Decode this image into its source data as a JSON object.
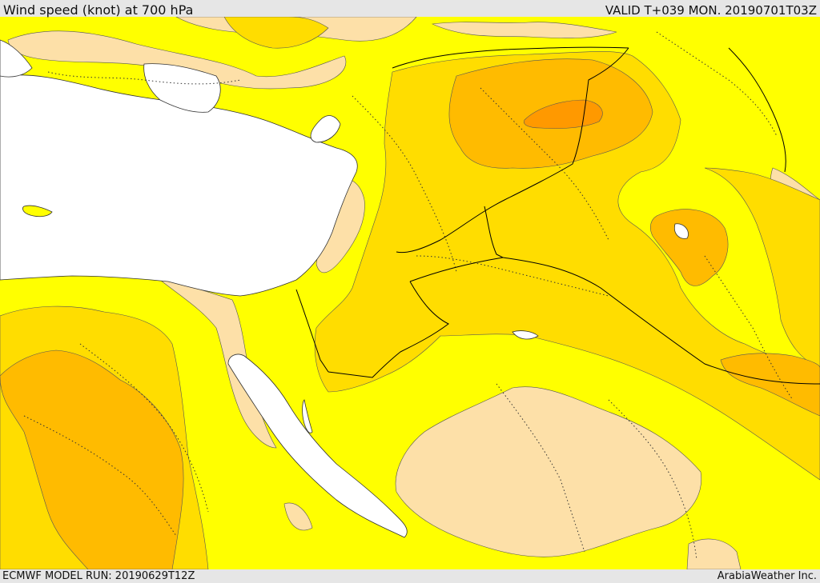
{
  "header": {
    "title": "Wind speed (knot) at 700 hPa",
    "valid": "VALID T+039 MON. 20190701T03Z"
  },
  "footer": {
    "model_run": "ECMWF MODEL RUN: 20190629T12Z",
    "credit": "ArabiaWeather Inc."
  },
  "colors": {
    "sea": "#ffffff",
    "level_low": "#fde0a8",
    "level_base": "#ffff00",
    "level_mid": "#ffdd00",
    "level_high": "#ffbb00",
    "level_max": "#ff9900",
    "border": "#000000",
    "bar_background": "#e6e6e6"
  }
}
